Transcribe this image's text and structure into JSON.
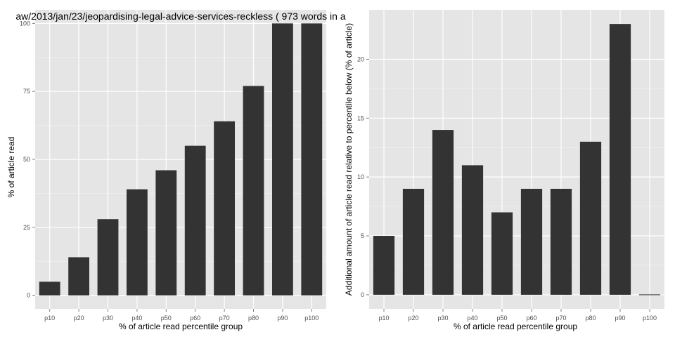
{
  "chart_data": [
    {
      "type": "bar",
      "title": "aw/2013/jan/23/jeopardising-legal-advice-services-reckless ( 973 words in a",
      "xlabel": "% of article read percentile group",
      "ylabel": "% of article read",
      "categories": [
        "p10",
        "p20",
        "p30",
        "p40",
        "p50",
        "p60",
        "p70",
        "p80",
        "p90",
        "p100"
      ],
      "values": [
        5,
        14,
        28,
        39,
        46,
        55,
        64,
        77,
        100,
        100
      ],
      "ylim": [
        -5,
        105
      ],
      "yticks": [
        0,
        25,
        50,
        75,
        100
      ],
      "grid": true,
      "colors": {
        "bar": "#333333",
        "panel": "#e5e5e5",
        "grid_major": "#ffffff",
        "grid_minor": "#f2f2f2"
      }
    },
    {
      "type": "bar",
      "title": "",
      "xlabel": "% of article read percentile group",
      "ylabel": "Additional amount of article read relative to percentile below (% of article)",
      "categories": [
        "p10",
        "p20",
        "p30",
        "p40",
        "p50",
        "p60",
        "p70",
        "p80",
        "p90",
        "p100"
      ],
      "values": [
        5,
        9,
        14,
        11,
        7,
        9,
        9,
        13,
        23,
        0
      ],
      "ylim": [
        -1.2,
        24.2
      ],
      "yticks": [
        0,
        5,
        10,
        15,
        20
      ],
      "grid": true,
      "colors": {
        "bar": "#333333",
        "panel": "#e5e5e5",
        "grid_major": "#ffffff",
        "grid_minor": "#f2f2f2"
      }
    }
  ]
}
